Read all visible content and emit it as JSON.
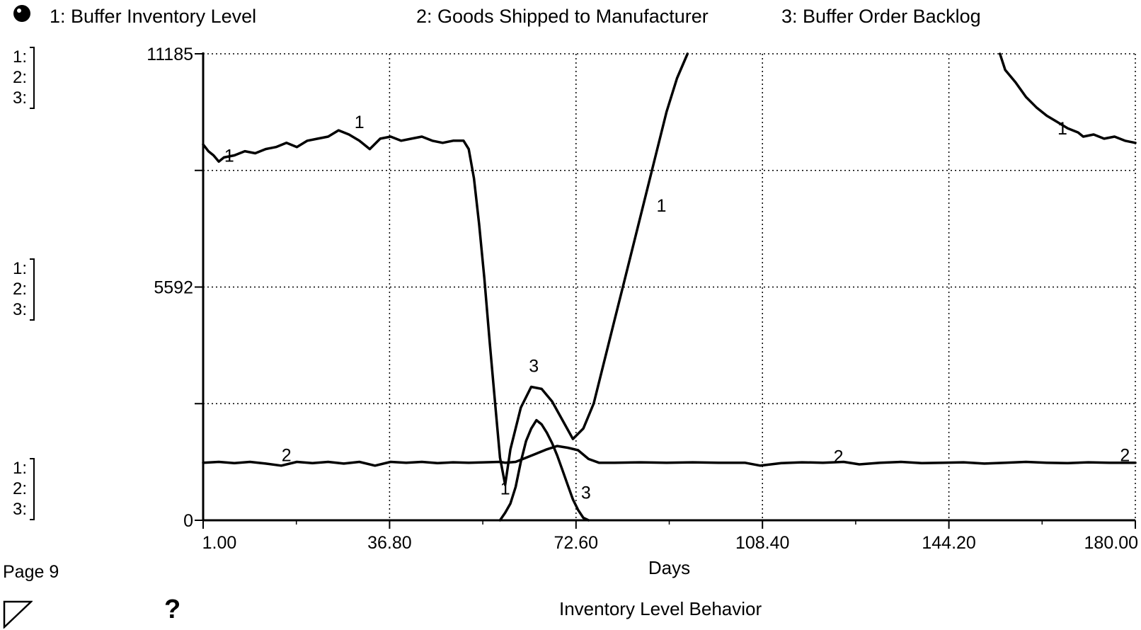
{
  "legend": [
    {
      "label": "1: Buffer Inventory  Level"
    },
    {
      "label": "2: Goods Shipped  to Manufacturer"
    },
    {
      "label": "3: Buffer Order Backlog"
    }
  ],
  "scale_labels": [
    "1:",
    "2:",
    "3:"
  ],
  "footer": {
    "page_label": "Page 9",
    "help_label": "?",
    "chart_title": "Inventory Level Behavior"
  },
  "chart_data": {
    "type": "line",
    "title": "Inventory Level Behavior",
    "xlabel": "Days",
    "ylabel": "",
    "xlim": [
      1.0,
      180.0
    ],
    "ylim": [
      0,
      11185
    ],
    "x_ticks": [
      "1.00",
      "36.80",
      "72.60",
      "108.40",
      "144.20",
      "180.00"
    ],
    "y_ticks": [
      "0",
      "5592",
      "11185"
    ],
    "grid": true,
    "legend_position": "top",
    "series": [
      {
        "name": "1: Buffer Inventory  Level",
        "marker": "1",
        "segments": [
          [
            [
              1,
              9010
            ],
            [
              2,
              8850
            ],
            [
              3,
              8750
            ],
            [
              4,
              8600
            ],
            [
              5,
              8700
            ],
            [
              7,
              8750
            ],
            [
              9,
              8850
            ],
            [
              11,
              8800
            ],
            [
              13,
              8900
            ],
            [
              15,
              8950
            ],
            [
              17,
              9050
            ],
            [
              19,
              8950
            ],
            [
              21,
              9100
            ],
            [
              23,
              9150
            ],
            [
              25,
              9200
            ],
            [
              27,
              9350
            ],
            [
              29,
              9250
            ],
            [
              31,
              9100
            ],
            [
              33,
              8900
            ],
            [
              35,
              9150
            ],
            [
              37,
              9200
            ],
            [
              39,
              9100
            ],
            [
              41,
              9150
            ],
            [
              43,
              9200
            ],
            [
              45,
              9100
            ],
            [
              47,
              9050
            ],
            [
              49,
              9100
            ],
            [
              51,
              9100
            ],
            [
              52,
              8900
            ],
            [
              53,
              8200
            ],
            [
              54,
              7100
            ],
            [
              55,
              5800
            ],
            [
              56,
              4300
            ],
            [
              57,
              2900
            ],
            [
              58,
              1500
            ],
            [
              59,
              850
            ],
            [
              60,
              1700
            ],
            [
              62,
              2700
            ],
            [
              64,
              3200
            ],
            [
              66,
              3150
            ],
            [
              68,
              2850
            ],
            [
              70,
              2400
            ],
            [
              72,
              1950
            ],
            [
              74,
              2200
            ],
            [
              76,
              2800
            ],
            [
              78,
              3800
            ],
            [
              80,
              4800
            ],
            [
              82,
              5800
            ],
            [
              84,
              6800
            ],
            [
              86,
              7800
            ],
            [
              88,
              8800
            ],
            [
              90,
              9800
            ],
            [
              92,
              10600
            ],
            [
              94,
              11185
            ]
          ],
          [
            [
              154,
              11185
            ],
            [
              155,
              10800
            ],
            [
              157,
              10500
            ],
            [
              159,
              10150
            ],
            [
              161,
              9900
            ],
            [
              163,
              9700
            ],
            [
              165,
              9550
            ],
            [
              167,
              9400
            ],
            [
              169,
              9300
            ],
            [
              170,
              9200
            ],
            [
              172,
              9250
            ],
            [
              174,
              9150
            ],
            [
              176,
              9200
            ],
            [
              178,
              9100
            ],
            [
              180,
              9050
            ]
          ]
        ]
      },
      {
        "name": "2: Goods Shipped  to Manufacturer",
        "marker": "2",
        "segments": [
          [
            [
              1,
              1380
            ],
            [
              4,
              1400
            ],
            [
              7,
              1370
            ],
            [
              10,
              1400
            ],
            [
              13,
              1360
            ],
            [
              16,
              1310
            ],
            [
              19,
              1400
            ],
            [
              22,
              1370
            ],
            [
              25,
              1400
            ],
            [
              28,
              1360
            ],
            [
              31,
              1400
            ],
            [
              34,
              1310
            ],
            [
              37,
              1400
            ],
            [
              40,
              1380
            ],
            [
              43,
              1400
            ],
            [
              46,
              1370
            ],
            [
              49,
              1390
            ],
            [
              52,
              1380
            ],
            [
              55,
              1390
            ],
            [
              58,
              1400
            ],
            [
              59,
              1380
            ],
            [
              61,
              1400
            ],
            [
              63,
              1500
            ],
            [
              65,
              1600
            ],
            [
              67,
              1700
            ],
            [
              69,
              1780
            ],
            [
              71,
              1740
            ],
            [
              73,
              1680
            ],
            [
              75,
              1470
            ],
            [
              77,
              1380
            ],
            [
              80,
              1380
            ],
            [
              85,
              1390
            ],
            [
              90,
              1380
            ],
            [
              95,
              1390
            ],
            [
              100,
              1380
            ],
            [
              105,
              1380
            ],
            [
              108,
              1310
            ],
            [
              112,
              1370
            ],
            [
              116,
              1390
            ],
            [
              120,
              1380
            ],
            [
              124,
              1400
            ],
            [
              127,
              1340
            ],
            [
              131,
              1380
            ],
            [
              135,
              1400
            ],
            [
              139,
              1370
            ],
            [
              143,
              1380
            ],
            [
              147,
              1390
            ],
            [
              151,
              1360
            ],
            [
              155,
              1380
            ],
            [
              159,
              1400
            ],
            [
              163,
              1380
            ],
            [
              167,
              1370
            ],
            [
              171,
              1390
            ],
            [
              175,
              1380
            ],
            [
              180,
              1380
            ]
          ]
        ]
      },
      {
        "name": "3: Buffer Order Backlog",
        "marker": "3",
        "segments": [
          [
            [
              58,
              0
            ],
            [
              59,
              180
            ],
            [
              60,
              400
            ],
            [
              61,
              800
            ],
            [
              62,
              1400
            ],
            [
              63,
              1900
            ],
            [
              64,
              2200
            ],
            [
              65,
              2400
            ],
            [
              66,
              2300
            ],
            [
              67,
              2100
            ],
            [
              68,
              1850
            ],
            [
              69,
              1550
            ],
            [
              70,
              1200
            ],
            [
              71,
              850
            ],
            [
              72,
              500
            ],
            [
              73,
              250
            ],
            [
              74,
              60
            ],
            [
              75,
              0
            ]
          ]
        ]
      }
    ],
    "marker_labels": [
      {
        "text": "1",
        "x": 6,
        "y": 8600
      },
      {
        "text": "1",
        "x": 31,
        "y": 9400
      },
      {
        "text": "1",
        "x": 59,
        "y": 620
      },
      {
        "text": "1",
        "x": 89,
        "y": 7400
      },
      {
        "text": "1",
        "x": 166,
        "y": 9250
      },
      {
        "text": "2",
        "x": 17,
        "y": 1420
      },
      {
        "text": "2",
        "x": 123,
        "y": 1380
      },
      {
        "text": "2",
        "x": 178,
        "y": 1420
      },
      {
        "text": "3",
        "x": 64.5,
        "y": 3560
      },
      {
        "text": "3",
        "x": 74.5,
        "y": 520
      }
    ]
  }
}
